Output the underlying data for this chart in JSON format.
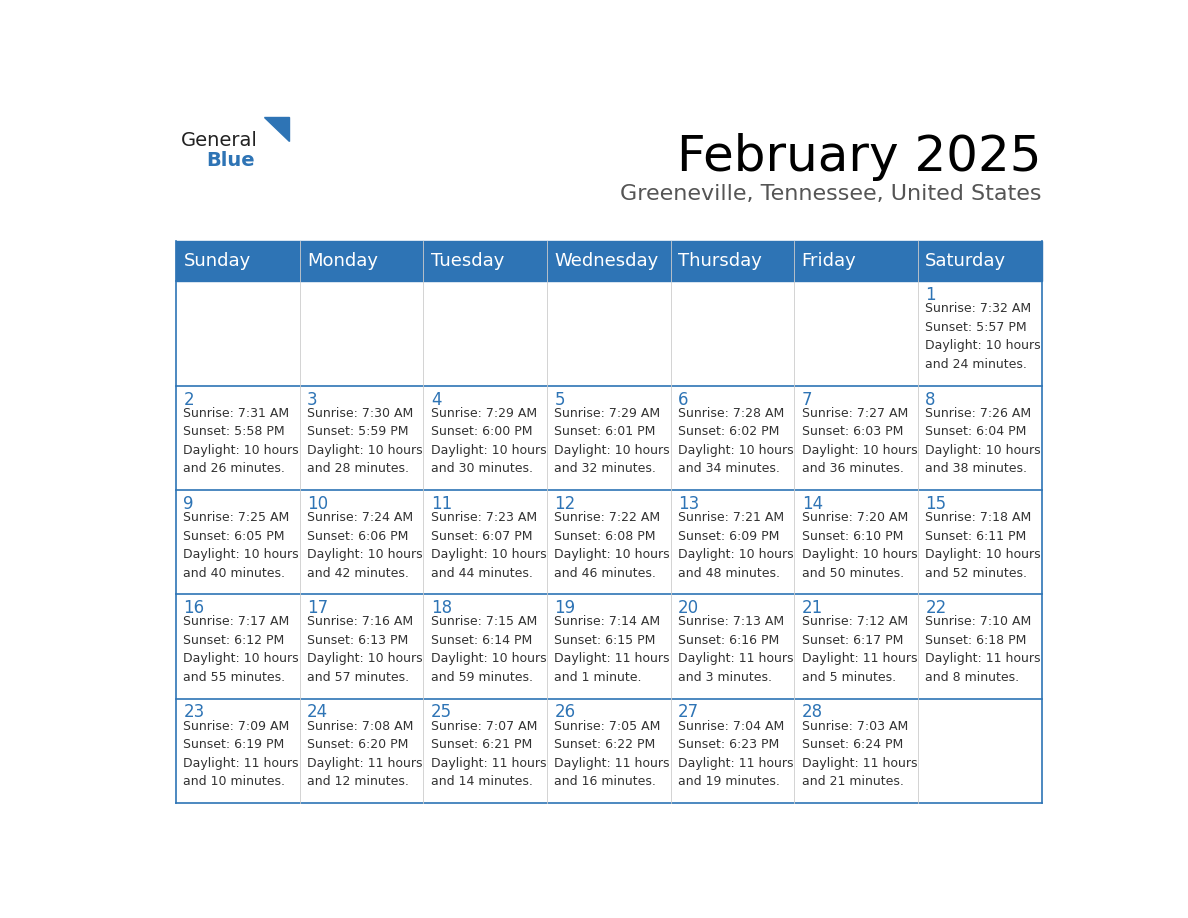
{
  "title": "February 2025",
  "subtitle": "Greeneville, Tennessee, United States",
  "header_bg": "#2E74B5",
  "header_text": "#FFFFFF",
  "border_color": "#2E74B5",
  "cell_line_color": "#2E74B5",
  "day_names": [
    "Sunday",
    "Monday",
    "Tuesday",
    "Wednesday",
    "Thursday",
    "Friday",
    "Saturday"
  ],
  "title_fontsize": 36,
  "subtitle_fontsize": 16,
  "header_fontsize": 13,
  "day_num_fontsize": 12,
  "info_fontsize": 9,
  "logo_text1": "General",
  "logo_text2": "Blue",
  "logo_color1": "#222222",
  "logo_color2": "#2E74B5",
  "logo_triangle_color": "#2E74B5",
  "weeks": [
    [
      {
        "day": null,
        "info": ""
      },
      {
        "day": null,
        "info": ""
      },
      {
        "day": null,
        "info": ""
      },
      {
        "day": null,
        "info": ""
      },
      {
        "day": null,
        "info": ""
      },
      {
        "day": null,
        "info": ""
      },
      {
        "day": 1,
        "info": "Sunrise: 7:32 AM\nSunset: 5:57 PM\nDaylight: 10 hours\nand 24 minutes."
      }
    ],
    [
      {
        "day": 2,
        "info": "Sunrise: 7:31 AM\nSunset: 5:58 PM\nDaylight: 10 hours\nand 26 minutes."
      },
      {
        "day": 3,
        "info": "Sunrise: 7:30 AM\nSunset: 5:59 PM\nDaylight: 10 hours\nand 28 minutes."
      },
      {
        "day": 4,
        "info": "Sunrise: 7:29 AM\nSunset: 6:00 PM\nDaylight: 10 hours\nand 30 minutes."
      },
      {
        "day": 5,
        "info": "Sunrise: 7:29 AM\nSunset: 6:01 PM\nDaylight: 10 hours\nand 32 minutes."
      },
      {
        "day": 6,
        "info": "Sunrise: 7:28 AM\nSunset: 6:02 PM\nDaylight: 10 hours\nand 34 minutes."
      },
      {
        "day": 7,
        "info": "Sunrise: 7:27 AM\nSunset: 6:03 PM\nDaylight: 10 hours\nand 36 minutes."
      },
      {
        "day": 8,
        "info": "Sunrise: 7:26 AM\nSunset: 6:04 PM\nDaylight: 10 hours\nand 38 minutes."
      }
    ],
    [
      {
        "day": 9,
        "info": "Sunrise: 7:25 AM\nSunset: 6:05 PM\nDaylight: 10 hours\nand 40 minutes."
      },
      {
        "day": 10,
        "info": "Sunrise: 7:24 AM\nSunset: 6:06 PM\nDaylight: 10 hours\nand 42 minutes."
      },
      {
        "day": 11,
        "info": "Sunrise: 7:23 AM\nSunset: 6:07 PM\nDaylight: 10 hours\nand 44 minutes."
      },
      {
        "day": 12,
        "info": "Sunrise: 7:22 AM\nSunset: 6:08 PM\nDaylight: 10 hours\nand 46 minutes."
      },
      {
        "day": 13,
        "info": "Sunrise: 7:21 AM\nSunset: 6:09 PM\nDaylight: 10 hours\nand 48 minutes."
      },
      {
        "day": 14,
        "info": "Sunrise: 7:20 AM\nSunset: 6:10 PM\nDaylight: 10 hours\nand 50 minutes."
      },
      {
        "day": 15,
        "info": "Sunrise: 7:18 AM\nSunset: 6:11 PM\nDaylight: 10 hours\nand 52 minutes."
      }
    ],
    [
      {
        "day": 16,
        "info": "Sunrise: 7:17 AM\nSunset: 6:12 PM\nDaylight: 10 hours\nand 55 minutes."
      },
      {
        "day": 17,
        "info": "Sunrise: 7:16 AM\nSunset: 6:13 PM\nDaylight: 10 hours\nand 57 minutes."
      },
      {
        "day": 18,
        "info": "Sunrise: 7:15 AM\nSunset: 6:14 PM\nDaylight: 10 hours\nand 59 minutes."
      },
      {
        "day": 19,
        "info": "Sunrise: 7:14 AM\nSunset: 6:15 PM\nDaylight: 11 hours\nand 1 minute."
      },
      {
        "day": 20,
        "info": "Sunrise: 7:13 AM\nSunset: 6:16 PM\nDaylight: 11 hours\nand 3 minutes."
      },
      {
        "day": 21,
        "info": "Sunrise: 7:12 AM\nSunset: 6:17 PM\nDaylight: 11 hours\nand 5 minutes."
      },
      {
        "day": 22,
        "info": "Sunrise: 7:10 AM\nSunset: 6:18 PM\nDaylight: 11 hours\nand 8 minutes."
      }
    ],
    [
      {
        "day": 23,
        "info": "Sunrise: 7:09 AM\nSunset: 6:19 PM\nDaylight: 11 hours\nand 10 minutes."
      },
      {
        "day": 24,
        "info": "Sunrise: 7:08 AM\nSunset: 6:20 PM\nDaylight: 11 hours\nand 12 minutes."
      },
      {
        "day": 25,
        "info": "Sunrise: 7:07 AM\nSunset: 6:21 PM\nDaylight: 11 hours\nand 14 minutes."
      },
      {
        "day": 26,
        "info": "Sunrise: 7:05 AM\nSunset: 6:22 PM\nDaylight: 11 hours\nand 16 minutes."
      },
      {
        "day": 27,
        "info": "Sunrise: 7:04 AM\nSunset: 6:23 PM\nDaylight: 11 hours\nand 19 minutes."
      },
      {
        "day": 28,
        "info": "Sunrise: 7:03 AM\nSunset: 6:24 PM\nDaylight: 11 hours\nand 21 minutes."
      },
      {
        "day": null,
        "info": ""
      }
    ]
  ]
}
